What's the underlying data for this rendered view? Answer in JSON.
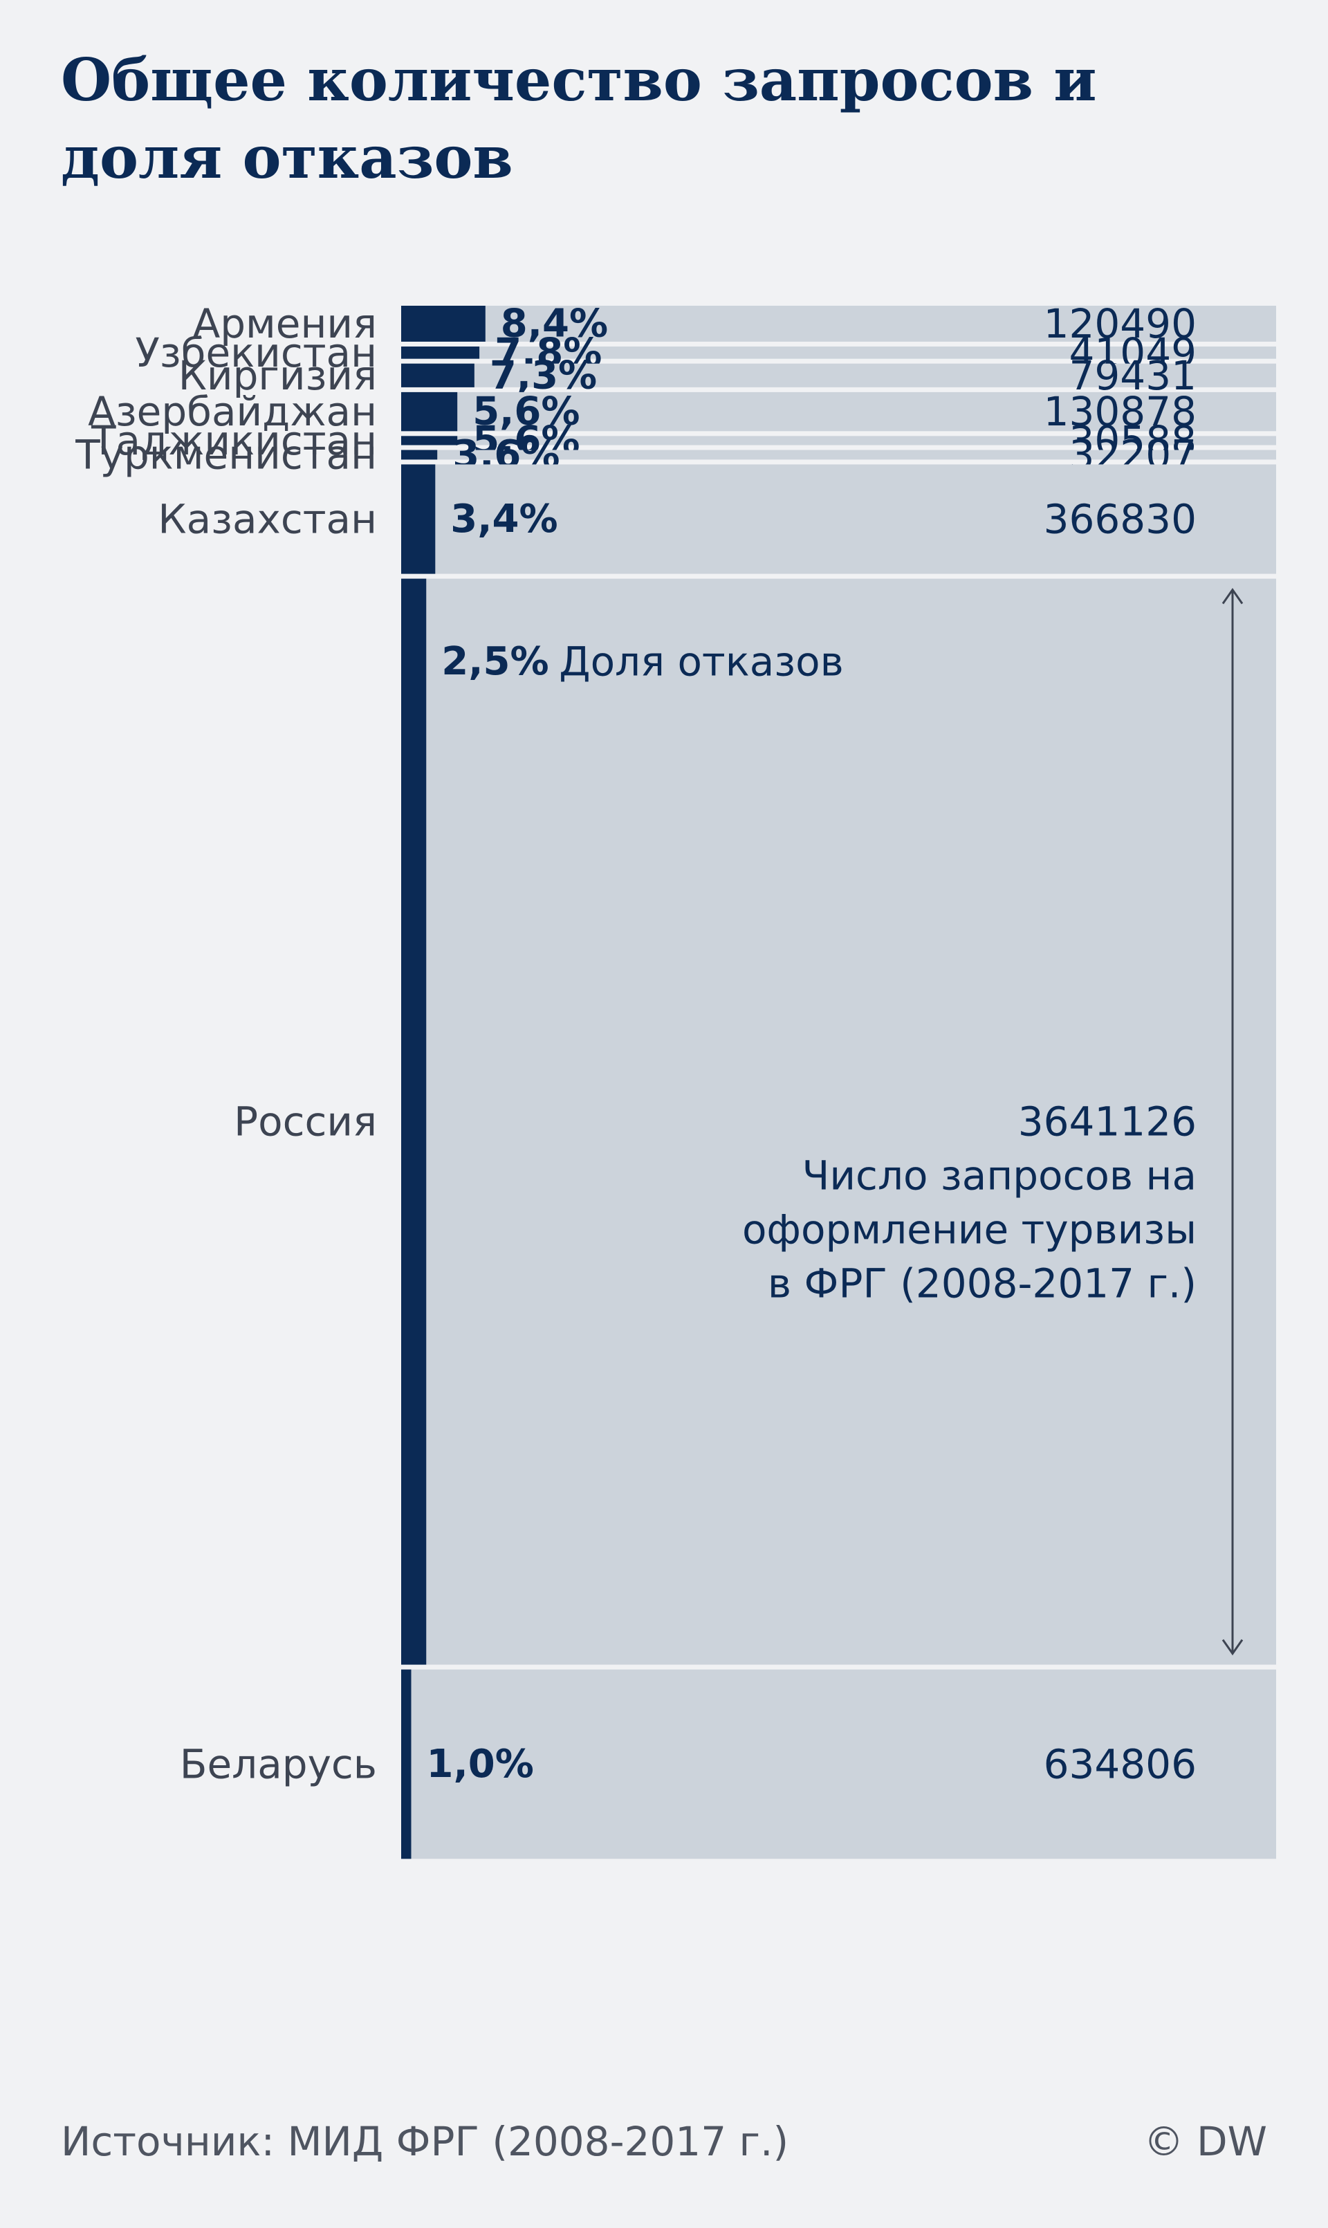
{
  "chart_data": {
    "type": "bar",
    "title": "Общее количество запросов и доля отказов",
    "categories": [
      "Армения",
      "Узбекистан",
      "Киргизия",
      "Азербайджан",
      "Таджикистан",
      "Туркменистан",
      "Казахстан",
      "Россия",
      "Беларусь"
    ],
    "series": [
      {
        "name": "Доля отказов",
        "values": [
          8.4,
          7.8,
          7.3,
          5.6,
          5.6,
          3.6,
          3.4,
          2.5,
          1.0
        ],
        "labels": [
          "8,4%",
          "7,8%",
          "7,3%",
          "5,6%",
          "5,6%",
          "3,6%",
          "3,4%",
          "2,5%",
          "1,0%"
        ]
      },
      {
        "name": "Число запросов на оформление турвизы в ФРГ (2008-2017 г.)",
        "values": [
          120490,
          41049,
          79431,
          130878,
          30588,
          32207,
          366830,
          3641126,
          634806
        ],
        "labels": [
          "120490",
          "41049",
          "79431",
          "130878",
          "30588",
          "32207",
          "366830",
          "3641126",
          "634806"
        ]
      }
    ],
    "annotations": {
      "share_label": "Доля отказов",
      "requests_label_lines": [
        "Число запросов на",
        "оформление турвизы",
        "в ФРГ (2008-2017 г.)"
      ]
    },
    "colors": {
      "share": "#0b2a55",
      "requests": "#ccd3db",
      "background": "#f1f2f4"
    }
  },
  "footer": {
    "source": "Источник: МИД ФРГ (2008-2017 г.)",
    "copyright": "© DW"
  }
}
